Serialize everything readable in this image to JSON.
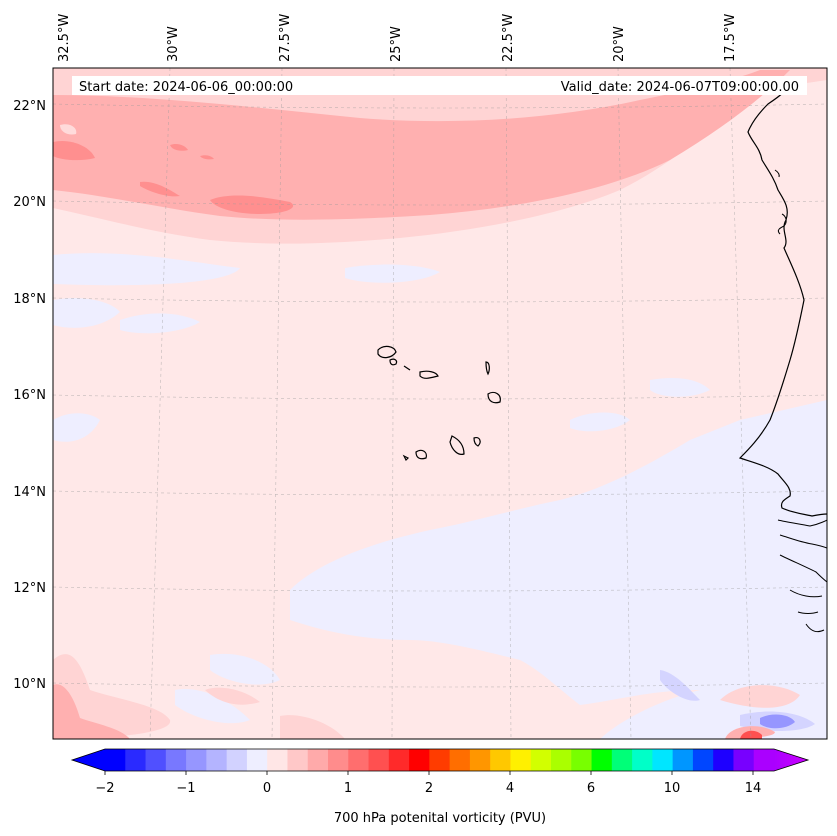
{
  "banner": {
    "start_date": "Start date: 2024-06-06_00:00:00",
    "valid_date": "Valid_date: 2024-06-07T09:00:00.00"
  },
  "longitude_labels": [
    "32.5°W",
    "30°W",
    "27.5°W",
    "25°W",
    "22.5°W",
    "20°W",
    "17.5°W"
  ],
  "latitude_labels": [
    "22°N",
    "20°N",
    "18°N",
    "16°N",
    "14°N",
    "12°N",
    "10°N"
  ],
  "colorbar": {
    "title": "700 hPa potenital vorticity (PVU)",
    "tick_labels": [
      "−2",
      "−1",
      "0",
      "1",
      "2",
      "4",
      "6",
      "10",
      "14"
    ],
    "colors": [
      "#0000ff",
      "#2a2aff",
      "#5050ff",
      "#7878ff",
      "#9696ff",
      "#b4b4ff",
      "#d2d2ff",
      "#eeeeff",
      "#ffe6e6",
      "#ffc8c8",
      "#ffaaaa",
      "#ff8c8c",
      "#ff6e6e",
      "#ff5050",
      "#ff2a2a",
      "#ff0000",
      "#ff3c00",
      "#ff6e00",
      "#ff9600",
      "#ffc800",
      "#fff000",
      "#d2ff00",
      "#aaff00",
      "#78ff00",
      "#00ff00",
      "#00ff78",
      "#00ffc8",
      "#00e6ff",
      "#0096ff",
      "#0046ff",
      "#1e00ff",
      "#7800ff",
      "#aa00ff"
    ],
    "under_color": "#0000ff",
    "over_color": "#cc00ff"
  },
  "colors": {
    "background": "#ffe8e8",
    "light_blue": "#eeeeff",
    "pink_light": "#ffd4d4",
    "pink_mid": "#ffb0b0",
    "pink_strong": "#ff8f8f",
    "coast": "#000000"
  }
}
